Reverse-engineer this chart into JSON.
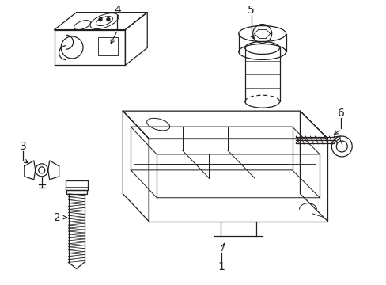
{
  "background_color": "#ffffff",
  "line_color": "#231f20",
  "figure_width": 4.89,
  "figure_height": 3.6,
  "dpi": 100
}
